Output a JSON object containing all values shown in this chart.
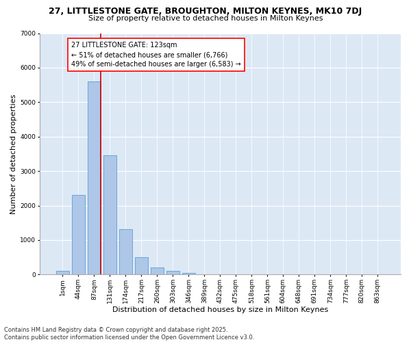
{
  "title_line1": "27, LITTLESTONE GATE, BROUGHTON, MILTON KEYNES, MK10 7DJ",
  "title_line2": "Size of property relative to detached houses in Milton Keynes",
  "xlabel": "Distribution of detached houses by size in Milton Keynes",
  "ylabel": "Number of detached properties",
  "categories": [
    "1sqm",
    "44sqm",
    "87sqm",
    "131sqm",
    "174sqm",
    "217sqm",
    "260sqm",
    "303sqm",
    "346sqm",
    "389sqm",
    "432sqm",
    "475sqm",
    "518sqm",
    "561sqm",
    "604sqm",
    "648sqm",
    "691sqm",
    "734sqm",
    "777sqm",
    "820sqm",
    "863sqm"
  ],
  "values": [
    100,
    2300,
    5600,
    3450,
    1310,
    500,
    200,
    100,
    50,
    0,
    0,
    0,
    0,
    0,
    0,
    0,
    0,
    0,
    0,
    0,
    0
  ],
  "bar_color": "#aec6e8",
  "bar_edgecolor": "#5a9fd4",
  "vline_color": "#cc0000",
  "annotation_line1": "27 LITTLESTONE GATE: 123sqm",
  "annotation_line2": "← 51% of detached houses are smaller (6,766)",
  "annotation_line3": "49% of semi-detached houses are larger (6,583) →",
  "annotation_fontsize": 7,
  "ylim": [
    0,
    7000
  ],
  "yticks": [
    0,
    1000,
    2000,
    3000,
    4000,
    5000,
    6000,
    7000
  ],
  "background_color": "#dde8f5",
  "grid_color": "#ffffff",
  "footer_line1": "Contains HM Land Registry data © Crown copyright and database right 2025.",
  "footer_line2": "Contains public sector information licensed under the Open Government Licence v3.0.",
  "title_fontsize": 9,
  "subtitle_fontsize": 8,
  "xlabel_fontsize": 8,
  "ylabel_fontsize": 8,
  "tick_fontsize": 6.5,
  "footer_fontsize": 6
}
